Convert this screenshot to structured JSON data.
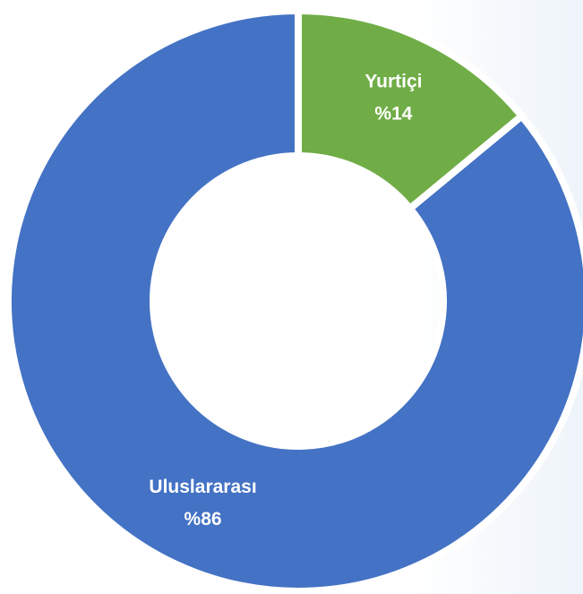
{
  "chart_data": {
    "type": "pie",
    "donut": true,
    "categories": [
      "Yurtiçi",
      "Uluslararası"
    ],
    "values": [
      14,
      86
    ],
    "value_labels": [
      "%14",
      "%86"
    ],
    "colors": [
      "#70ad47",
      "#4472c4"
    ]
  }
}
